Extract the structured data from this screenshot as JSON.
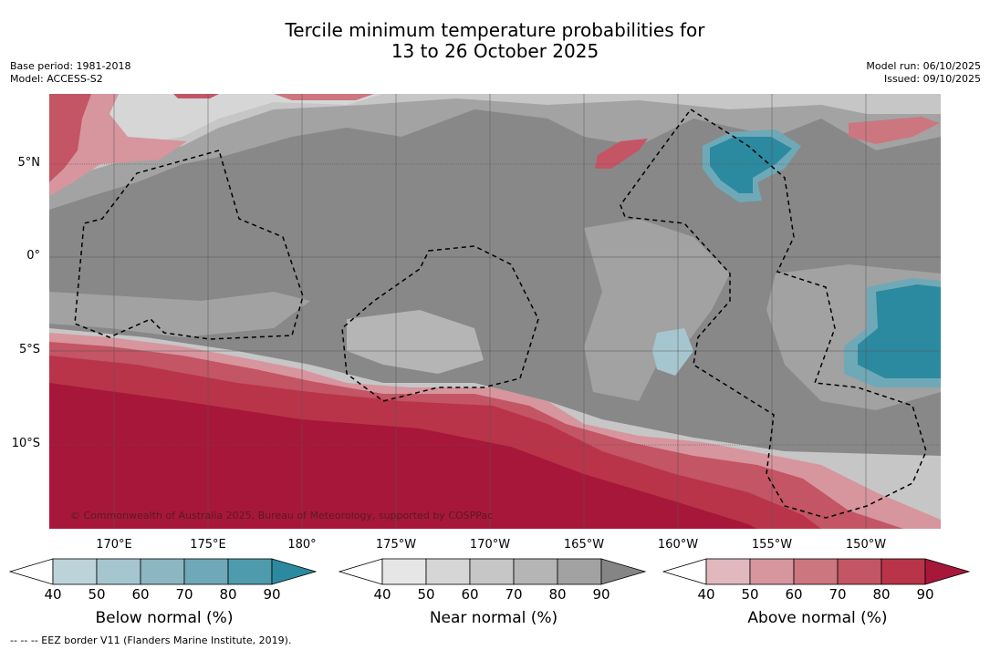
{
  "title": {
    "line1": "Tercile minimum temperature probabilities for",
    "line2": "13 to 26 October 2025"
  },
  "meta_left": {
    "base_period": "Base period: 1981-2018",
    "model": "Model: ACCESS-S2"
  },
  "meta_right": {
    "model_run": "Model run: 06/10/2025",
    "issued": "Issued: 09/10/2025"
  },
  "lat_labels": [
    "5°N",
    "0°",
    "5°S",
    "10°S"
  ],
  "lon_labels": [
    "170°E",
    "175°E",
    "180°",
    "175°W",
    "170°W",
    "165°W",
    "160°W",
    "155°W",
    "150°W"
  ],
  "copyright": "© Commonwealth of Australia 2025, Bureau of Meteorology, supported by COSPPac",
  "colorbars": [
    {
      "title": "Below normal (%)",
      "ticks": [
        "40",
        "50",
        "60",
        "70",
        "80",
        "90"
      ],
      "colors": [
        "#bdd3da",
        "#a6c6cf",
        "#8cb6c2",
        "#6fa9b8",
        "#4d9bac",
        "#2b8a9f"
      ]
    },
    {
      "title": "Near normal (%)",
      "ticks": [
        "40",
        "50",
        "60",
        "70",
        "80",
        "90"
      ],
      "colors": [
        "#e6e6e6",
        "#d6d6d6",
        "#c6c6c6",
        "#b5b5b5",
        "#a2a2a2",
        "#858585"
      ]
    },
    {
      "title": "Above normal (%)",
      "ticks": [
        "40",
        "50",
        "60",
        "70",
        "80",
        "90"
      ],
      "colors": [
        "#e0b8bd",
        "#d7959e",
        "#cc7680",
        "#c35565",
        "#b93449",
        "#a7173a"
      ]
    }
  ],
  "footnote": "-- -- -- EEZ border V11 (Flanders Marine Institute, 2019)."
}
